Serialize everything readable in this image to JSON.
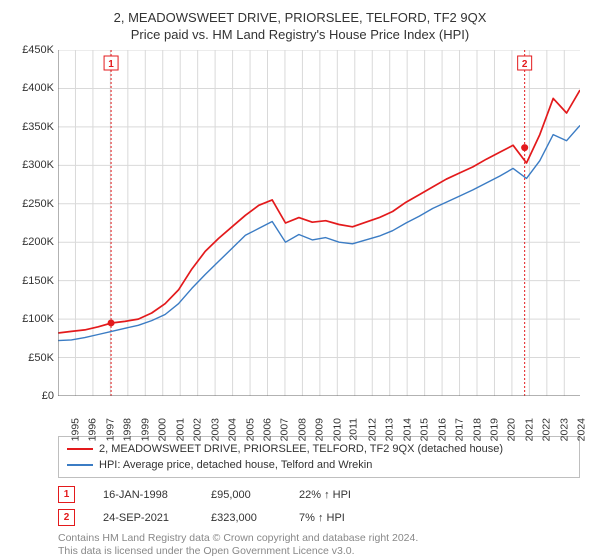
{
  "title_line1": "2, MEADOWSWEET DRIVE, PRIORSLEE, TELFORD, TF2 9QX",
  "title_line2": "Price paid vs. HM Land Registry's House Price Index (HPI)",
  "chart": {
    "type": "line",
    "background_color": "#ffffff",
    "grid_color": "#d9d9d9",
    "axis_color": "#666666",
    "text_color": "#333333",
    "ylim": [
      0,
      450
    ],
    "ytick_step": 50,
    "ytick_prefix": "£",
    "ytick_suffix": "K",
    "y_tick_labels": [
      "£0",
      "£50K",
      "£100K",
      "£150K",
      "£200K",
      "£250K",
      "£300K",
      "£350K",
      "£400K",
      "£450K"
    ],
    "x_years": [
      1995,
      1996,
      1997,
      1998,
      1999,
      2000,
      2001,
      2002,
      2003,
      2004,
      2005,
      2006,
      2007,
      2008,
      2009,
      2010,
      2011,
      2012,
      2013,
      2014,
      2015,
      2016,
      2017,
      2018,
      2019,
      2020,
      2021,
      2022,
      2023,
      2024
    ],
    "x_index_min": 0,
    "x_index_max": 29.9,
    "series": [
      {
        "name": "price_paid",
        "color": "#e31a1c",
        "width": 1.7,
        "values": [
          82,
          84,
          86,
          90,
          95,
          97,
          100,
          108,
          120,
          138,
          165,
          188,
          205,
          220,
          235,
          248,
          255,
          225,
          232,
          226,
          228,
          223,
          220,
          226,
          232,
          240,
          252,
          262,
          272,
          282,
          290,
          298,
          308,
          317,
          326,
          303,
          340,
          387,
          368,
          398
        ]
      },
      {
        "name": "hpi",
        "color": "#3b7cc4",
        "width": 1.4,
        "values": [
          72,
          73,
          76,
          80,
          84,
          88,
          92,
          98,
          106,
          120,
          140,
          158,
          175,
          192,
          209,
          218,
          227,
          200,
          210,
          203,
          206,
          200,
          198,
          203,
          208,
          215,
          225,
          234,
          244,
          252,
          260,
          268,
          277,
          286,
          296,
          283,
          306,
          340,
          332,
          352
        ]
      }
    ],
    "markers": [
      {
        "idx": 1,
        "x_index": 3.04,
        "x_line_color": "#e31a1c",
        "point_y": 95,
        "point_color": "#e31a1c",
        "box_border": "#e31a1c"
      },
      {
        "idx": 2,
        "x_index": 26.73,
        "x_line_color": "#e31a1c",
        "point_y": 323,
        "point_color": "#e31a1c",
        "box_border": "#e31a1c"
      }
    ],
    "marker_label_font": 10,
    "x_label_fontsize": 10.5,
    "y_label_fontsize": 11,
    "title_fontsize": 13
  },
  "legend": {
    "border_color": "#bfbfbf",
    "rows": [
      {
        "color": "#e31a1c",
        "label": "2, MEADOWSWEET DRIVE, PRIORSLEE, TELFORD, TF2 9QX (detached house)"
      },
      {
        "color": "#3b7cc4",
        "label": "HPI: Average price, detached house, Telford and Wrekin"
      }
    ]
  },
  "marker_table": {
    "rows": [
      {
        "num": "1",
        "border": "#e31a1c",
        "date": "16-JAN-1998",
        "price": "£95,000",
        "delta": "22% ↑ HPI"
      },
      {
        "num": "2",
        "border": "#e31a1c",
        "date": "24-SEP-2021",
        "price": "£323,000",
        "delta": "7% ↑ HPI"
      }
    ]
  },
  "footer": {
    "line1": "Contains HM Land Registry data © Crown copyright and database right 2024.",
    "line2": "This data is licensed under the Open Government Licence v3.0."
  }
}
